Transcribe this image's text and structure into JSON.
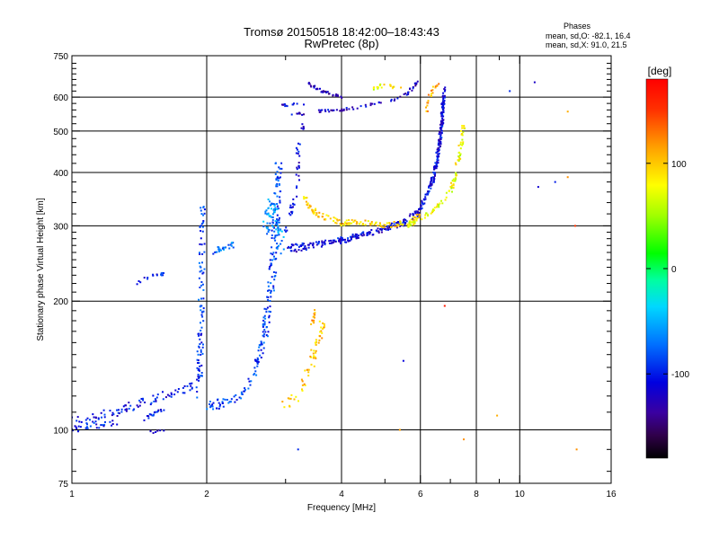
{
  "chart_data": {
    "type": "scatter",
    "title": "Tromsø 20150518 18:42:00–18:43:43",
    "subtitle": "RwPretec (8p)",
    "xlabel": "Frequency [MHz]",
    "ylabel": "Stationary phase Virtual Height [km]",
    "x_scale": "log",
    "y_scale": "log",
    "xlim": [
      1,
      16
    ],
    "ylim": [
      75,
      750
    ],
    "x_ticks": [
      1,
      2,
      4,
      6,
      8,
      10,
      16
    ],
    "x_tick_labels": [
      "1",
      "2",
      "4",
      "6",
      "8",
      "10",
      "16"
    ],
    "x_minor_ticks": [
      3,
      5,
      7,
      9
    ],
    "y_ticks": [
      75,
      100,
      200,
      300,
      400,
      500,
      600,
      750
    ],
    "y_tick_labels": [
      "75",
      "100",
      "200",
      "300",
      "400",
      "500",
      "600",
      "750"
    ],
    "y_minor_ticks": [
      80,
      90,
      110,
      120,
      130,
      140,
      150,
      160,
      170,
      180,
      190,
      210,
      220,
      230,
      240,
      250,
      260,
      270,
      280,
      290,
      320,
      340,
      360,
      380,
      420,
      440,
      460,
      480,
      520,
      540,
      560,
      580,
      620,
      640,
      660,
      680,
      700,
      720
    ],
    "grid": true,
    "stats": {
      "heading": "Phases",
      "line_o": "mean, sd,O: -82.1, 16.4",
      "line_x": "mean, sd,X:  91.0, 21.5"
    },
    "colorbar": {
      "label": "[deg]",
      "range": [
        -180,
        180
      ],
      "ticks": [
        100,
        0,
        -100
      ],
      "tick_labels": [
        "100",
        "0",
        "-100"
      ]
    },
    "traces": [
      {
        "kind": "line",
        "points": [
          [
            1.0,
            106
          ],
          [
            1.1,
            106
          ],
          [
            1.3,
            112
          ],
          [
            1.6,
            120
          ],
          [
            1.85,
            126
          ],
          [
            1.95,
            135
          ]
        ],
        "phase": -105,
        "spread": 0.05,
        "count": 90
      },
      {
        "kind": "line",
        "points": [
          [
            1.0,
            100
          ],
          [
            1.1,
            102
          ],
          [
            1.25,
            104
          ]
        ],
        "phase": -95,
        "spread": 0.035,
        "count": 30
      },
      {
        "kind": "line",
        "points": [
          [
            1.45,
            106
          ],
          [
            1.6,
            112
          ]
        ],
        "phase": -100,
        "spread": 0.02,
        "count": 18
      },
      {
        "kind": "line",
        "points": [
          [
            1.48,
            99
          ],
          [
            1.6,
            99
          ]
        ],
        "phase": -110,
        "spread": 0.015,
        "count": 8
      },
      {
        "kind": "line",
        "points": [
          [
            1.37,
            218
          ],
          [
            1.5,
            228
          ],
          [
            1.6,
            232
          ]
        ],
        "phase": -105,
        "spread": 0.02,
        "count": 16
      },
      {
        "kind": "line",
        "points": [
          [
            1.92,
            120
          ],
          [
            1.94,
            170
          ],
          [
            1.95,
            230
          ],
          [
            1.96,
            330
          ]
        ],
        "phase": -92,
        "spread": 0.04,
        "count": 95
      },
      {
        "kind": "line",
        "points": [
          [
            2.0,
            114
          ],
          [
            2.25,
            116
          ],
          [
            2.45,
            125
          ],
          [
            2.6,
            140
          ],
          [
            2.7,
            170
          ],
          [
            2.8,
            230
          ],
          [
            2.85,
            300
          ],
          [
            2.9,
            420
          ]
        ],
        "phase": -88,
        "spread": 0.05,
        "count": 210
      },
      {
        "kind": "line",
        "points": [
          [
            2.05,
            260
          ],
          [
            2.3,
            272
          ]
        ],
        "phase": -72,
        "spread": 0.03,
        "count": 25
      },
      {
        "kind": "line",
        "points": [
          [
            2.7,
            290
          ],
          [
            2.8,
            340
          ],
          [
            2.95,
            260
          ]
        ],
        "phase": -62,
        "spread": 0.06,
        "count": 70
      },
      {
        "kind": "line",
        "points": [
          [
            3.0,
            268
          ],
          [
            3.4,
            272
          ],
          [
            3.8,
            276
          ],
          [
            4.3,
            285
          ],
          [
            4.9,
            295
          ],
          [
            5.5,
            308
          ],
          [
            6.0,
            330
          ],
          [
            6.4,
            380
          ],
          [
            6.6,
            450
          ],
          [
            6.75,
            560
          ],
          [
            6.8,
            640
          ]
        ],
        "phase": -108,
        "spread": 0.02,
        "count": 260
      },
      {
        "kind": "line",
        "points": [
          [
            3.05,
            262
          ],
          [
            3.5,
            268
          ],
          [
            4.2,
            278
          ],
          [
            4.8,
            290
          ],
          [
            5.4,
            300
          ],
          [
            5.9,
            315
          ],
          [
            6.2,
            350
          ],
          [
            6.5,
            420
          ],
          [
            6.7,
            520
          ],
          [
            6.75,
            600
          ]
        ],
        "phase": -112,
        "spread": 0.02,
        "count": 160
      },
      {
        "kind": "line",
        "points": [
          [
            3.0,
            290
          ],
          [
            3.1,
            330
          ],
          [
            3.2,
            380
          ],
          [
            3.2,
            470
          ],
          [
            3.3,
            520
          ]
        ],
        "phase": -113,
        "spread": 0.03,
        "count": 45
      },
      {
        "kind": "line",
        "points": [
          [
            3.1,
            545
          ],
          [
            3.5,
            555
          ],
          [
            4.0,
            560
          ],
          [
            4.6,
            575
          ],
          [
            5.2,
            590
          ],
          [
            5.6,
            610
          ],
          [
            5.9,
            650
          ]
        ],
        "phase": -118,
        "spread": 0.015,
        "count": 70
      },
      {
        "kind": "line",
        "points": [
          [
            2.95,
            575
          ],
          [
            3.3,
            580
          ]
        ],
        "phase": -115,
        "spread": 0.015,
        "count": 12
      },
      {
        "kind": "line",
        "points": [
          [
            3.35,
            650
          ],
          [
            3.6,
            620
          ],
          [
            3.9,
            605
          ],
          [
            4.0,
            600
          ]
        ],
        "phase": -130,
        "spread": 0.015,
        "count": 35
      },
      {
        "kind": "line",
        "points": [
          [
            4.6,
            625
          ],
          [
            5.0,
            640
          ],
          [
            5.5,
            628
          ]
        ],
        "phase": 80,
        "spread": 0.02,
        "count": 18
      },
      {
        "kind": "line",
        "points": [
          [
            3.3,
            350
          ],
          [
            3.5,
            320
          ],
          [
            4.0,
            305
          ],
          [
            4.5,
            305
          ],
          [
            5.0,
            300
          ],
          [
            5.5,
            305
          ],
          [
            6.0,
            315
          ]
        ],
        "phase": 95,
        "spread": 0.03,
        "count": 140
      },
      {
        "kind": "line",
        "points": [
          [
            5.6,
            300
          ],
          [
            6.0,
            310
          ],
          [
            6.5,
            330
          ],
          [
            7.0,
            360
          ],
          [
            7.2,
            400
          ],
          [
            7.4,
            470
          ],
          [
            7.5,
            520
          ]
        ],
        "phase": 75,
        "spread": 0.025,
        "count": 95
      },
      {
        "kind": "line",
        "points": [
          [
            3.0,
            115
          ],
          [
            3.2,
            120
          ],
          [
            3.4,
            140
          ],
          [
            3.55,
            160
          ],
          [
            3.6,
            180
          ],
          [
            3.7,
            160
          ]
        ],
        "phase": 100,
        "spread": 0.05,
        "count": 60
      },
      {
        "kind": "line",
        "points": [
          [
            3.4,
            170
          ],
          [
            3.5,
            190
          ]
        ],
        "phase": 115,
        "spread": 0.03,
        "count": 12
      },
      {
        "kind": "line",
        "points": [
          [
            6.2,
            560
          ],
          [
            6.4,
            630
          ],
          [
            6.6,
            650
          ]
        ],
        "phase": 110,
        "spread": 0.03,
        "count": 20
      },
      {
        "kind": "point",
        "points": [
          [
            10.8,
            650
          ],
          [
            11.0,
            370
          ],
          [
            12.8,
            555
          ],
          [
            12.8,
            390
          ],
          [
            13.3,
            300
          ],
          [
            8.9,
            108
          ],
          [
            13.4,
            90
          ],
          [
            5.4,
            100
          ],
          [
            5.5,
            145
          ],
          [
            6.8,
            195
          ],
          [
            3.2,
            90
          ],
          [
            12.0,
            380
          ],
          [
            9.5,
            620
          ],
          [
            7.5,
            95
          ]
        ],
        "phases": [
          -120,
          -115,
          110,
          120,
          150,
          110,
          120,
          115,
          -110,
          165,
          -95,
          -100,
          -95,
          120
        ]
      }
    ]
  }
}
